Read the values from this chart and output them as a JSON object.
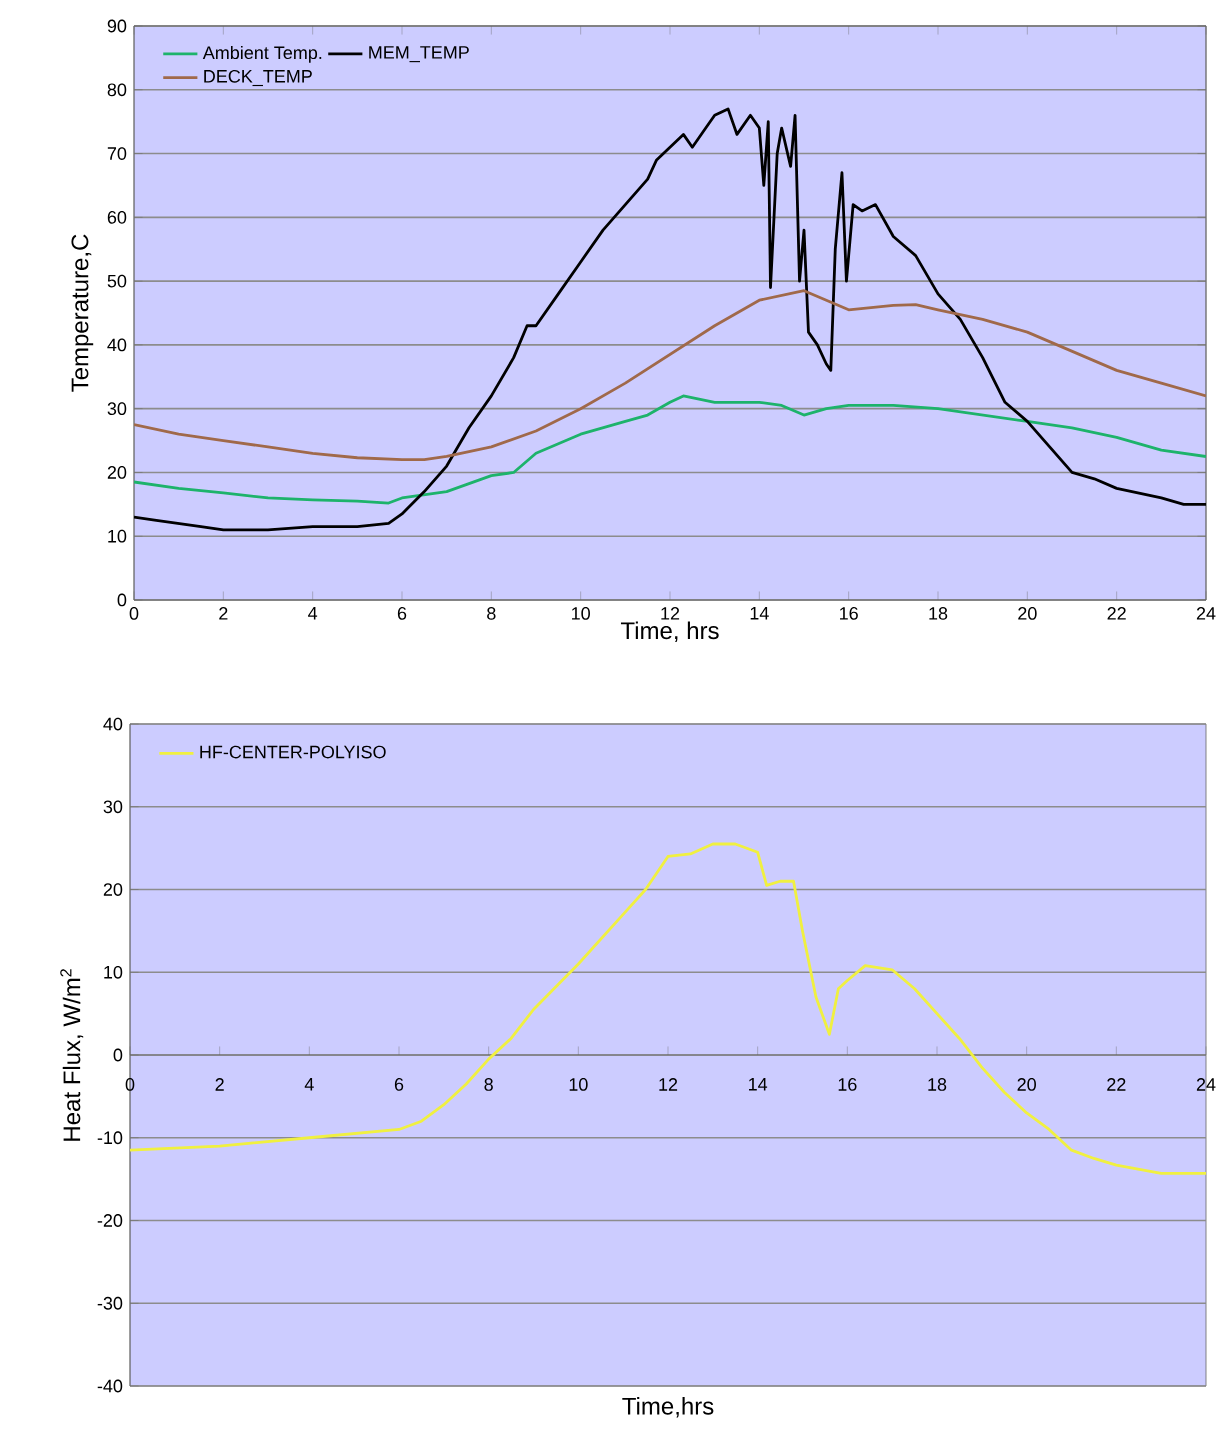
{
  "chart_data": [
    {
      "type": "line",
      "xlabel": "Time, hrs",
      "ylabel": "Temperature,C",
      "xlim": [
        0,
        24
      ],
      "ylim": [
        0,
        90
      ],
      "xticks": [
        0,
        2,
        4,
        6,
        8,
        10,
        12,
        14,
        16,
        18,
        20,
        22,
        24
      ],
      "yticks": [
        0,
        10,
        20,
        30,
        40,
        50,
        60,
        70,
        80,
        90
      ],
      "grid": "y",
      "legend": "top left",
      "series": [
        {
          "name": "Ambient Temp.",
          "color": "#1db36b",
          "x": [
            0,
            1,
            2,
            3,
            4,
            5,
            5.7,
            6,
            7,
            8,
            8.5,
            9,
            10,
            11,
            11.5,
            12,
            12.3,
            13,
            14,
            14.5,
            15,
            15.5,
            16,
            17,
            18,
            19,
            20,
            21,
            22,
            23,
            24
          ],
          "values": [
            18.5,
            17.5,
            16.8,
            16,
            15.7,
            15.5,
            15.2,
            16,
            17,
            19.5,
            20,
            23,
            26,
            28,
            29,
            31,
            32,
            31,
            31,
            30.5,
            29,
            30,
            30.5,
            30.5,
            30,
            29,
            28,
            27,
            25.5,
            23.5,
            22.5
          ]
        },
        {
          "name": "MEM_TEMP",
          "color": "#000000",
          "x": [
            0,
            0.5,
            1,
            1.5,
            2,
            3,
            4,
            5,
            5.7,
            6,
            6.5,
            7,
            7.5,
            8,
            8.5,
            8.8,
            9,
            9.5,
            10,
            10.5,
            11,
            11.5,
            11.7,
            12,
            12.3,
            12.5,
            12.8,
            13,
            13.3,
            13.5,
            13.8,
            14,
            14.1,
            14.2,
            14.25,
            14.4,
            14.5,
            14.7,
            14.8,
            14.9,
            15,
            15.1,
            15.3,
            15.5,
            15.6,
            15.7,
            15.85,
            15.95,
            16.1,
            16.3,
            16.6,
            17,
            17.5,
            18,
            18.5,
            19,
            19.5,
            20,
            20.5,
            21,
            21.5,
            22,
            23,
            23.5,
            24
          ],
          "values": [
            13,
            12.5,
            12,
            11.5,
            11,
            11,
            11.5,
            11.5,
            12,
            13.5,
            17,
            21,
            27,
            32,
            38,
            43,
            43,
            48,
            53,
            58,
            62,
            66,
            69,
            71,
            73,
            71,
            74,
            76,
            77,
            73,
            76,
            74,
            65,
            75,
            49,
            70,
            74,
            68,
            76,
            50,
            58,
            42,
            40,
            37,
            36,
            55,
            67,
            50,
            62,
            61,
            62,
            57,
            54,
            48,
            44,
            38,
            31,
            28,
            24,
            20,
            19,
            17.5,
            16,
            15,
            15
          ]
        },
        {
          "name": "DECK_TEMP",
          "color": "#a0694a",
          "x": [
            0,
            1,
            2,
            3,
            4,
            5,
            6,
            6.5,
            7,
            8,
            9,
            10,
            11,
            12,
            13,
            14,
            15,
            15.5,
            16,
            17,
            17.5,
            18,
            19,
            20,
            21,
            22,
            23,
            24
          ],
          "values": [
            27.5,
            26,
            25,
            24,
            23,
            22.3,
            22,
            22,
            22.5,
            24,
            26.5,
            30,
            34,
            38.5,
            43,
            47,
            48.5,
            47,
            45.5,
            46.2,
            46.3,
            45.5,
            44,
            42,
            39,
            36,
            34,
            32
          ]
        }
      ]
    },
    {
      "type": "line",
      "xlabel": "Time,hrs",
      "ylabel": "Heat Flux, W/m$^{2}$",
      "xlim": [
        0,
        24
      ],
      "ylim": [
        -40,
        40
      ],
      "xticks": [
        0,
        2,
        4,
        6,
        8,
        10,
        12,
        14,
        16,
        18,
        20,
        22,
        24
      ],
      "yticks": [
        -40,
        -30,
        -20,
        -10,
        0,
        10,
        20,
        30,
        40
      ],
      "grid": "y",
      "legend": "top left",
      "series": [
        {
          "name": "HF-CENTER-POLYISO",
          "color": "#f0f040",
          "x": [
            0,
            2,
            4,
            6,
            6.5,
            7,
            7.5,
            8,
            8.5,
            9,
            10,
            11,
            11.5,
            12,
            12.5,
            13,
            13.5,
            14,
            14.2,
            14.5,
            14.8,
            15,
            15.3,
            15.6,
            15.8,
            16,
            16.4,
            17,
            17.5,
            18,
            18.5,
            19,
            19.5,
            20,
            20.5,
            21,
            21.5,
            22,
            23,
            24
          ],
          "values": [
            -11.5,
            -11,
            -10,
            -9,
            -8,
            -6,
            -3.5,
            -0.5,
            2,
            5.5,
            11,
            17,
            20,
            24,
            24.3,
            25.5,
            25.5,
            24.5,
            20.5,
            21,
            21,
            15,
            7,
            2.5,
            8,
            9,
            10.8,
            10.3,
            8,
            5,
            2,
            -1.5,
            -4.5,
            -7,
            -9,
            -11.5,
            -12.5,
            -13.3,
            -14.3,
            -14.3
          ]
        }
      ]
    }
  ]
}
